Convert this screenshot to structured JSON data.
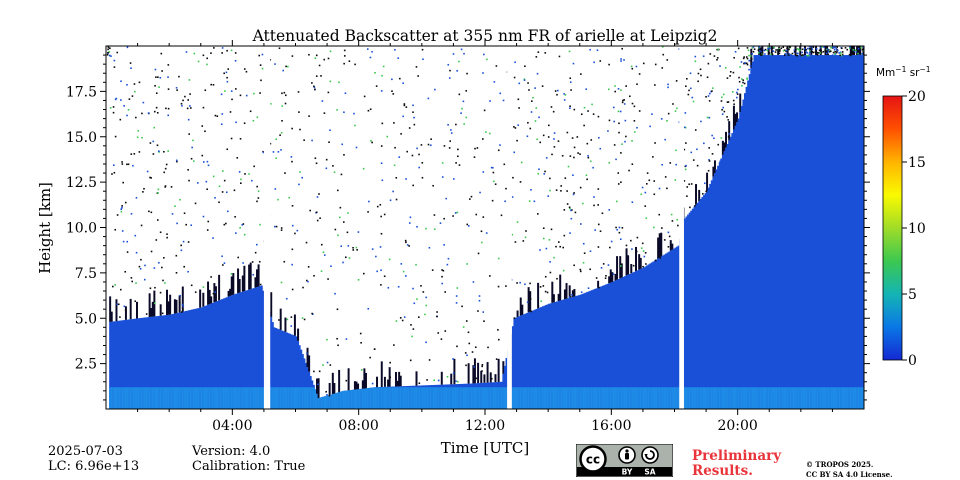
{
  "chart_data": {
    "type": "heatmap",
    "title": "Attenuated Backscatter at 355 nm FR of arielle at Leipzig2",
    "xlabel": "Time [UTC]",
    "ylabel": "Height [km]",
    "x_range_hours": [
      0,
      24
    ],
    "x_tick_values": [
      4,
      8,
      12,
      16,
      20
    ],
    "x_tick_labels": [
      "04:00",
      "08:00",
      "12:00",
      "16:00",
      "20:00"
    ],
    "ylim": [
      0,
      20
    ],
    "y_tick_values": [
      2.5,
      5.0,
      7.5,
      10.0,
      12.5,
      15.0,
      17.5
    ],
    "y_tick_labels": [
      "2.5",
      "5.0",
      "7.5",
      "10.0",
      "12.5",
      "15.0",
      "17.5"
    ],
    "colorbar": {
      "unit_base": "Mm",
      "unit_exp1": "−1",
      "unit_mid": " sr",
      "unit_exp2": "−1",
      "range": [
        0,
        20
      ],
      "tick_values": [
        0,
        5,
        10,
        15,
        20
      ],
      "tick_labels": [
        "0",
        "5",
        "10",
        "15",
        "20"
      ],
      "colors": [
        "#1428d2",
        "#0a78e6",
        "#14b4b4",
        "#3cc850",
        "#a0dc28",
        "#fafa00",
        "#ffb400",
        "#ff5000",
        "#e61414"
      ]
    },
    "data_gaps_hours": [
      [
        5.0,
        5.2
      ],
      [
        12.7,
        12.85
      ],
      [
        18.15,
        18.3
      ]
    ],
    "cloud_top_km": [
      [
        0.1,
        4.8
      ],
      [
        1.0,
        5.0
      ],
      [
        2.0,
        5.2
      ],
      [
        3.0,
        5.6
      ],
      [
        4.0,
        6.3
      ],
      [
        4.9,
        6.8
      ],
      [
        5.3,
        4.5
      ],
      [
        6.0,
        4.0
      ],
      [
        6.7,
        0.6
      ],
      [
        7.5,
        1.0
      ],
      [
        8.5,
        1.2
      ],
      [
        10.0,
        1.3
      ],
      [
        11.5,
        1.4
      ],
      [
        12.5,
        1.5
      ],
      [
        12.9,
        5.0
      ],
      [
        14.0,
        5.8
      ],
      [
        15.0,
        6.3
      ],
      [
        16.0,
        7.0
      ],
      [
        17.0,
        7.8
      ],
      [
        18.1,
        9.0
      ],
      [
        18.3,
        10.5
      ],
      [
        19.0,
        12.0
      ],
      [
        20.0,
        16.0
      ],
      [
        20.5,
        19.5
      ],
      [
        24.0,
        19.5
      ]
    ]
  },
  "footer": {
    "date": "2025-07-03",
    "lc": "LC: 6.96e+13",
    "version": "Version: 4.0",
    "calibration": "Calibration: True",
    "preliminary_line1": "Preliminary",
    "preliminary_line2": "Results.",
    "copyright_line1": "© TROPOS 2025.",
    "copyright_line2": "CC BY SA 4.0 License.",
    "cc_label": "cc",
    "by_label": "BY",
    "sa_label": "SA"
  }
}
